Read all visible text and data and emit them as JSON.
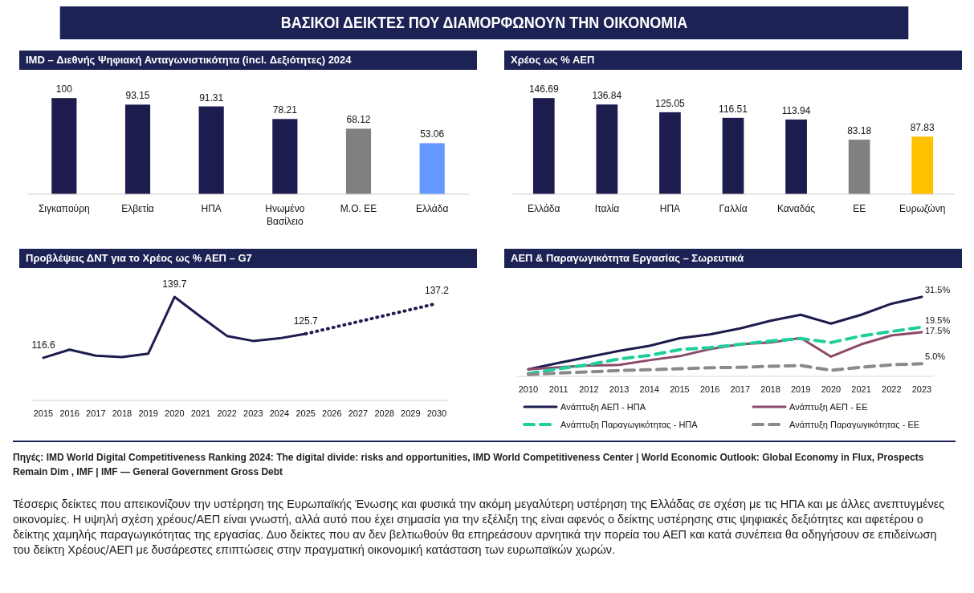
{
  "chart_data": [
    {
      "type": "other",
      "title": "ΒΑΣΙΚΟΙ ΔΕΙΚΤΕΣ ΠΟΥ ΔΙΑΜΟΡΦΩΝΟΥΝ ΤΗΝ ΟΙΚΟΝΟΜΙΑ"
    },
    {
      "type": "bar",
      "title": "IMD – Διεθνής Ψηφιακή Ανταγωνιστικότητα (incl. Δεξιότητες) 2024",
      "categories": [
        "Σιγκαπούρη",
        "Ελβετία",
        "ΗΠΑ",
        "Ηνωμένο Βασίλειο",
        "Μ.Ο. ΕΕ",
        "Ελλάδα"
      ],
      "values": [
        100,
        93.15,
        91.31,
        78.21,
        68.12,
        53.06
      ],
      "colors": [
        "#1c1c4f",
        "#1c1c4f",
        "#1c1c4f",
        "#1c1c4f",
        "#808080",
        "#6699ff"
      ],
      "data_labels": true,
      "tick_labels": "x"
    },
    {
      "type": "bar",
      "title": "Χρέος ως % ΑΕΠ",
      "categories": [
        "Ελλάδα",
        "Ιταλία",
        "ΗΠΑ",
        "Γαλλία",
        "Καναδάς",
        "ΕΕ",
        "Ευρωζώνη"
      ],
      "values": [
        146.69,
        136.84,
        125.05,
        116.51,
        113.94,
        83.18,
        87.83
      ],
      "colors": [
        "#1c1c4f",
        "#1c1c4f",
        "#1c1c4f",
        "#1c1c4f",
        "#1c1c4f",
        "#808080",
        "#ffc000"
      ],
      "data_labels": true,
      "tick_labels": "x"
    },
    {
      "type": "line",
      "title": "Προβλέψεις ΔΝΤ για το Χρέος ως % ΑΕΠ – G7",
      "categories": [
        "2015",
        "2016",
        "2017",
        "2018",
        "2019",
        "2020",
        "2021",
        "2022",
        "2023",
        "2024",
        "2025",
        "2026",
        "2027",
        "2028",
        "2029",
        "2030"
      ],
      "series": [
        {
          "color": "#1c1c4f",
          "line_style": "solid",
          "values": [
            116.6,
            119.7,
            117.4,
            116.9,
            118.2,
            139.7,
            132.2,
            124.9,
            123.0,
            124.0,
            125.7,
            null,
            null,
            null,
            null,
            null
          ],
          "value_labels": [
            "116.6",
            null,
            null,
            null,
            null,
            "139.7",
            null,
            null,
            null,
            null,
            "125.7",
            null,
            null,
            null,
            null,
            null
          ]
        },
        {
          "color": "#1c1c4f",
          "line_style": "dotted",
          "values": [
            null,
            null,
            null,
            null,
            null,
            null,
            null,
            null,
            null,
            null,
            125.7,
            128.0,
            130.3,
            132.6,
            134.9,
            137.2
          ],
          "value_labels": [
            null,
            null,
            null,
            null,
            null,
            null,
            null,
            null,
            null,
            null,
            null,
            null,
            null,
            null,
            null,
            "137.2"
          ]
        }
      ],
      "tick_labels": "x",
      "legend": false
    },
    {
      "type": "line",
      "title": "ΑΕΠ & Παραγωγικότητα Εργασίας – Σωρευτικά",
      "categories": [
        "2010",
        "2011",
        "2012",
        "2013",
        "2014",
        "2015",
        "2016",
        "2017",
        "2018",
        "2019",
        "2020",
        "2021",
        "2022",
        "2023"
      ],
      "series": [
        {
          "name": "Ανάπτυξη ΑΕΠ - ΗΠΑ",
          "color": "#1c1c4f",
          "line_style": "solid",
          "values": [
            2.8,
            5.3,
            7.7,
            10.1,
            12.1,
            15.1,
            16.6,
            19.0,
            22.0,
            24.4,
            20.9,
            24.4,
            28.8,
            31.5
          ],
          "value_labels": [
            null,
            null,
            null,
            null,
            null,
            null,
            null,
            null,
            null,
            null,
            null,
            null,
            null,
            "31.5%"
          ]
        },
        {
          "name": "Ανάπτυξη ΑΕΠ - ΕΕ",
          "color": "#8b4a6b",
          "line_style": "solid",
          "values": [
            2.8,
            3.6,
            4.3,
            4.5,
            6.4,
            8.0,
            10.8,
            12.7,
            13.4,
            15.2,
            7.8,
            12.7,
            16.2,
            17.5
          ],
          "value_labels": [
            null,
            null,
            null,
            null,
            null,
            null,
            null,
            null,
            null,
            null,
            null,
            null,
            null,
            "17.5%"
          ]
        },
        {
          "name": "Ανάπτυξη Παραγωγικότητας - ΗΠΑ",
          "color": "#1fcf9a",
          "line_style": "dashed",
          "values": [
            1.1,
            3.0,
            4.6,
            6.9,
            8.3,
            10.6,
            11.4,
            12.7,
            14.0,
            15.0,
            13.4,
            16.0,
            17.8,
            19.5
          ],
          "value_labels": [
            null,
            null,
            null,
            null,
            null,
            null,
            null,
            null,
            null,
            null,
            null,
            null,
            null,
            "19.5%"
          ]
        },
        {
          "name": "Ανάπτυξη Παραγωγικότητας - ΕΕ",
          "color": "#8a8a8a",
          "line_style": "dashed",
          "values": [
            0.7,
            1.3,
            1.8,
            2.3,
            2.6,
            3.0,
            3.4,
            3.6,
            4.0,
            4.3,
            2.4,
            3.6,
            4.6,
            5.0
          ],
          "value_labels": [
            null,
            null,
            null,
            null,
            null,
            null,
            null,
            null,
            null,
            null,
            null,
            null,
            null,
            "5.0%"
          ]
        }
      ],
      "tick_labels": "x",
      "legend": "bottom"
    },
    {
      "type": "other",
      "annotations": [
        "Πηγές: IMD World Digital Competitiveness Ranking 2024: The digital divide: risks and opportunities, IMD World Competitiveness Center | World Economic Outlook: Global Economy in Flux, Prospects Remain Dim , IMF | IMF — General Government Gross Debt",
        "Τέσσερις δείκτες που απεικονίζουν την υστέρηση της Ευρωπαϊκής Ένωσης και φυσικά την ακόμη μεγαλύτερη υστέρηση της Ελλάδας σε σχέση με τις ΗΠΑ και με άλλες ανεπτυγμένες οικονομίες. Η υψηλή σχέση χρέους/ΑΕΠ είναι γνωστή, αλλά αυτό που έχει σημασία για την εξέλιξη της είναι αφενός ο δείκτης υστέρησης στις ψηφιακές δεξιότητες και αφετέρου ο δείκτης χαμηλής παραγωγικότητας της εργασίας. Δυο δείκτες που αν δεν βελτιωθούν θα επηρεάσουν αρνητικά την πορεία του ΑΕΠ και κατά συνέπεια θα οδηγήσουν σε επιδείνωση του δείκτη Χρέους/ΑΕΠ με δυσάρεστες επιπτώσεις στην πραγματική οικονομική κατάσταση των ευρωπαϊκών χωρών."
      ]
    }
  ]
}
